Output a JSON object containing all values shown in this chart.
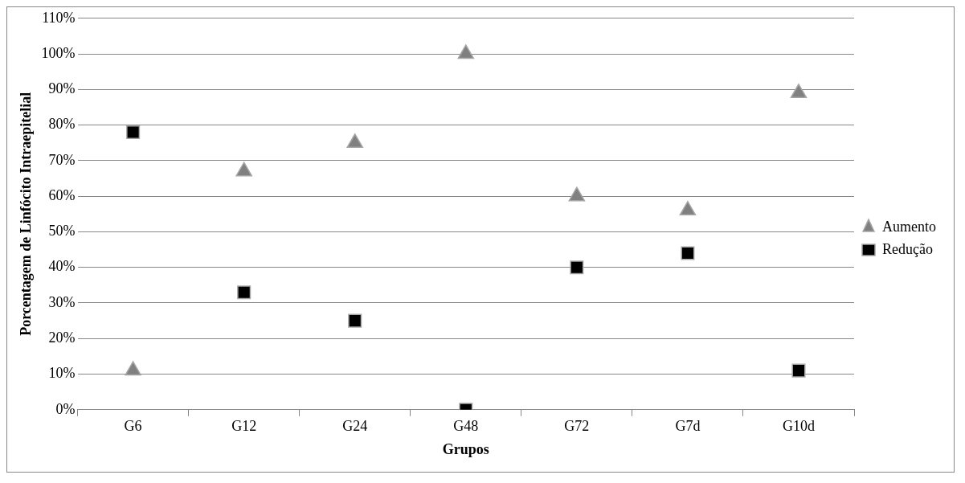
{
  "chart_data": {
    "type": "scatter",
    "xlabel": "Grupos",
    "ylabel": "Porcentagem de Linfócito Intraepitelial",
    "categories": [
      "G6",
      "G12",
      "G24",
      "G48",
      "G72",
      "G7d",
      "G10d"
    ],
    "series": [
      {
        "name": "Aumento",
        "color": "#808080",
        "marker": "triangle",
        "values": [
          11,
          67,
          75,
          100,
          60,
          56,
          89
        ]
      },
      {
        "name": "Redução",
        "color": "#000000",
        "marker": "square",
        "values": [
          78,
          33,
          25,
          0,
          40,
          44,
          11
        ]
      }
    ],
    "ylim": [
      0,
      110
    ],
    "yticks": [
      {
        "value": 0,
        "label": "0%"
      },
      {
        "value": 10,
        "label": "10%"
      },
      {
        "value": 20,
        "label": "20%"
      },
      {
        "value": 30,
        "label": "30%"
      },
      {
        "value": 40,
        "label": "40%"
      },
      {
        "value": 50,
        "label": "50%"
      },
      {
        "value": 60,
        "label": "60%"
      },
      {
        "value": 70,
        "label": "70%"
      },
      {
        "value": 80,
        "label": "80%"
      },
      {
        "value": 90,
        "label": "90%"
      },
      {
        "value": 100,
        "label": "100%"
      },
      {
        "value": 110,
        "label": "110%"
      }
    ],
    "grid": "y",
    "legend": "right"
  }
}
